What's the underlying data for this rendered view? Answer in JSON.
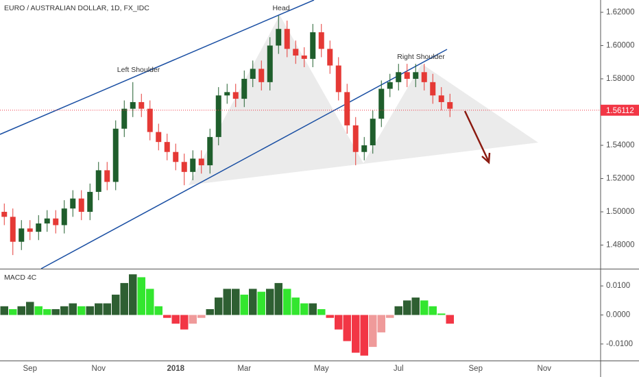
{
  "chart_data": [
    {
      "type": "candlestick",
      "title": "EURO / AUSTRALIAN DOLLAR, 1D, FX_IDC",
      "annotations": [
        "Left Shoulder",
        "Head",
        "Right Shoulder"
      ],
      "categories": [
        null,
        null,
        null,
        "Sep",
        null,
        null,
        null,
        null,
        null,
        null,
        null,
        "Nov",
        null,
        null,
        null,
        null,
        null,
        null,
        null,
        null,
        "2018",
        null,
        null,
        null,
        null,
        null,
        null,
        null,
        "Mar",
        null,
        null,
        null,
        null,
        null,
        null,
        null,
        null,
        "May",
        null,
        null,
        null,
        null,
        null,
        null,
        null,
        null,
        "Jul",
        null,
        null,
        null,
        null,
        null,
        null,
        null,
        null,
        "Sep",
        null,
        null,
        null,
        null,
        null,
        null,
        null,
        "Nov",
        null,
        null,
        null,
        null,
        null,
        null
      ],
      "open": [
        1.5,
        1.497,
        1.482,
        1.49,
        1.488,
        1.493,
        1.496,
        1.492,
        1.502,
        1.508,
        1.5,
        1.512,
        1.525,
        1.518,
        1.55,
        1.562,
        1.566,
        1.562,
        1.548,
        1.542,
        1.536,
        1.53,
        1.524,
        1.532,
        1.528,
        1.545,
        1.57,
        1.572,
        1.568,
        1.58,
        1.586,
        1.578,
        1.6,
        1.61,
        1.598,
        1.594,
        1.592,
        1.608,
        1.598,
        1.588,
        1.572,
        1.552,
        1.536,
        1.54,
        1.556,
        1.574,
        1.578,
        1.584,
        1.58,
        1.584,
        1.578,
        1.57,
        1.566,
        null,
        null,
        null,
        null,
        null,
        null,
        null,
        null,
        null,
        null,
        null,
        null,
        null,
        null,
        null,
        null,
        null
      ],
      "high": [
        1.505,
        1.502,
        1.495,
        1.495,
        1.498,
        1.501,
        1.501,
        1.507,
        1.513,
        1.513,
        1.517,
        1.53,
        1.53,
        1.555,
        1.567,
        1.578,
        1.571,
        1.567,
        1.553,
        1.547,
        1.541,
        1.535,
        1.537,
        1.537,
        1.55,
        1.575,
        1.577,
        1.577,
        1.585,
        1.591,
        1.591,
        1.605,
        1.618,
        1.615,
        1.603,
        1.599,
        1.613,
        1.613,
        1.603,
        1.593,
        1.577,
        1.557,
        1.545,
        1.561,
        1.579,
        1.583,
        1.589,
        1.589,
        1.589,
        1.589,
        1.583,
        1.575,
        1.571,
        null,
        null,
        null,
        null,
        null,
        null,
        null,
        null,
        null,
        null,
        null,
        null,
        null,
        null,
        null,
        null,
        null
      ],
      "low": [
        1.492,
        1.474,
        1.477,
        1.483,
        1.483,
        1.488,
        1.487,
        1.487,
        1.497,
        1.495,
        1.495,
        1.507,
        1.513,
        1.513,
        1.545,
        1.557,
        1.557,
        1.543,
        1.537,
        1.531,
        1.525,
        1.516,
        1.519,
        1.523,
        1.523,
        1.54,
        1.565,
        1.563,
        1.563,
        1.575,
        1.573,
        1.573,
        1.595,
        1.593,
        1.589,
        1.587,
        1.587,
        1.593,
        1.583,
        1.567,
        1.547,
        1.528,
        1.531,
        1.535,
        1.551,
        1.569,
        1.573,
        1.575,
        1.575,
        1.573,
        1.565,
        1.561,
        1.557,
        null,
        null,
        null,
        null,
        null,
        null,
        null,
        null,
        null,
        null,
        null,
        null,
        null,
        null,
        null,
        null,
        null
      ],
      "close": [
        1.497,
        1.482,
        1.49,
        1.488,
        1.493,
        1.496,
        1.492,
        1.502,
        1.508,
        1.5,
        1.512,
        1.525,
        1.518,
        1.55,
        1.562,
        1.566,
        1.562,
        1.548,
        1.542,
        1.536,
        1.53,
        1.524,
        1.532,
        1.528,
        1.545,
        1.57,
        1.572,
        1.568,
        1.58,
        1.586,
        1.578,
        1.6,
        1.61,
        1.598,
        1.594,
        1.592,
        1.608,
        1.598,
        1.588,
        1.572,
        1.552,
        1.536,
        1.54,
        1.556,
        1.574,
        1.578,
        1.584,
        1.58,
        1.584,
        1.578,
        1.57,
        1.566,
        1.562,
        null,
        null,
        null,
        null,
        null,
        null,
        null,
        null,
        null,
        null,
        null,
        null,
        null,
        null,
        null,
        null,
        null
      ],
      "up_color": "#1f5e2c",
      "down_color": "#e53935",
      "last_price": 1.56112,
      "last_price_color": "#f23645",
      "ylim": [
        1.4658,
        1.6274
      ],
      "yticks": [
        {
          "value": 1.48,
          "label": "1.48000"
        },
        {
          "value": 1.5,
          "label": "1.50000"
        },
        {
          "value": 1.52,
          "label": "1.52000"
        },
        {
          "value": 1.54,
          "label": "1.54000"
        },
        {
          "value": 1.56,
          "label": "1.56000"
        },
        {
          "value": 1.58,
          "label": "1.58000"
        },
        {
          "value": 1.6,
          "label": "1.60000"
        },
        {
          "value": 1.62,
          "label": "1.62000"
        }
      ],
      "grid": false
    },
    {
      "type": "bar",
      "title": "MACD 4C",
      "values": [
        0.003,
        0.002,
        0.003,
        0.0045,
        0.003,
        0.002,
        0.002,
        0.003,
        0.004,
        0.003,
        0.003,
        0.004,
        0.004,
        0.007,
        0.011,
        0.014,
        0.013,
        0.009,
        0.003,
        -0.001,
        -0.003,
        -0.005,
        -0.003,
        -0.001,
        0.002,
        0.006,
        0.009,
        0.009,
        0.007,
        0.009,
        0.008,
        0.009,
        0.011,
        0.009,
        0.006,
        0.004,
        0.004,
        0.002,
        -0.001,
        -0.005,
        -0.009,
        -0.013,
        -0.014,
        -0.011,
        -0.006,
        -0.001,
        0.003,
        0.005,
        0.006,
        0.005,
        0.003,
        0.0005,
        -0.003,
        null,
        null,
        null,
        null,
        null,
        null,
        null,
        null,
        null,
        null,
        null,
        null,
        null,
        null,
        null,
        null,
        null
      ],
      "colors": {
        "up_rising": "#2e5f32",
        "up_falling": "#33e62f",
        "down_falling": "#f23645",
        "down_rising": "#ef9a9a"
      },
      "ylim": [
        -0.0157,
        0.0157
      ],
      "yticks": [
        {
          "value": -0.01,
          "label": "-0.0100"
        },
        {
          "value": 0,
          "label": "0.0000"
        },
        {
          "value": 0.01,
          "label": "0.0100"
        }
      ],
      "grid": false
    }
  ]
}
